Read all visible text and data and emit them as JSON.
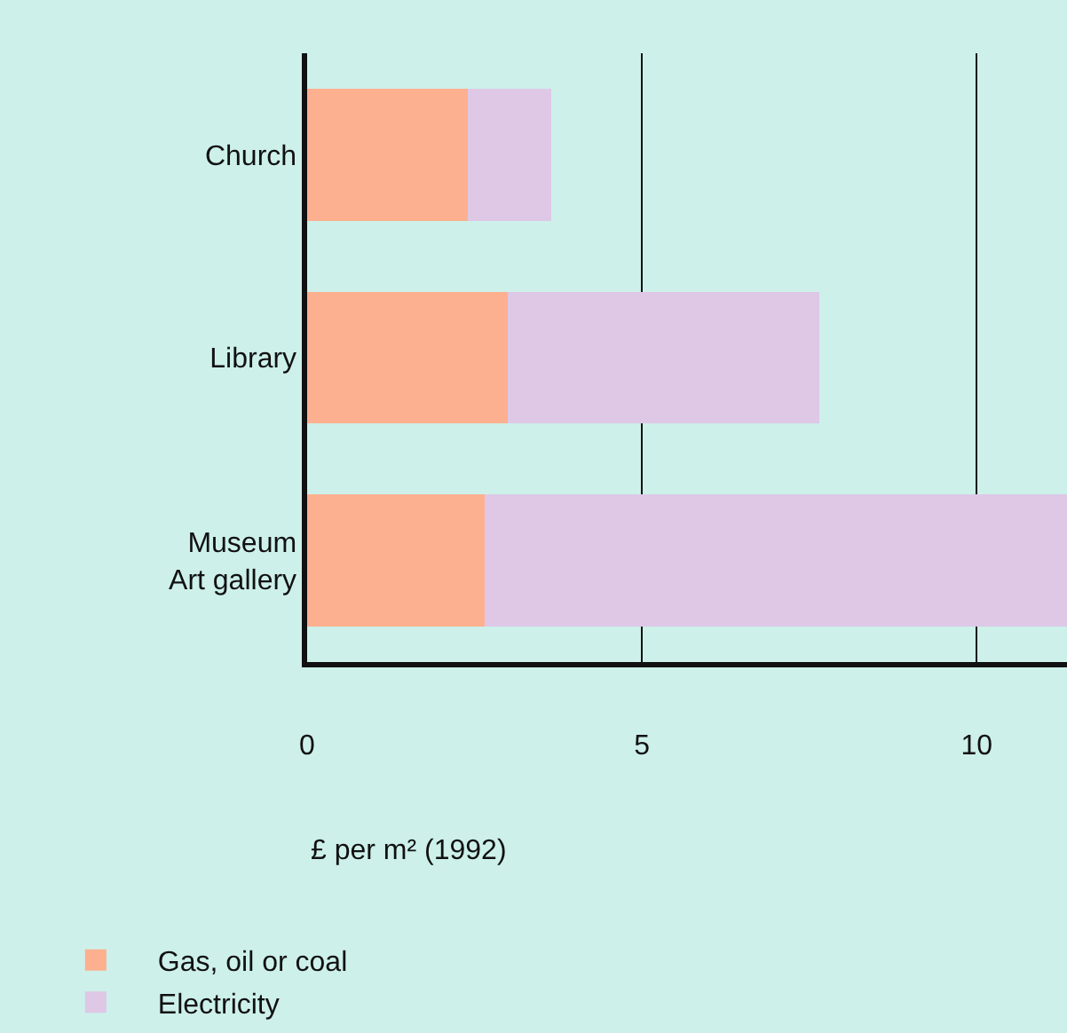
{
  "chart_data": {
    "type": "bar",
    "orientation": "horizontal",
    "stacked": true,
    "categories": [
      "Church",
      "Library",
      "Museum\nArt gallery"
    ],
    "series": [
      {
        "name": "Gas, oil or coal",
        "color": "#fdb08f",
        "values": [
          2.4,
          3.0,
          2.65
        ]
      },
      {
        "name": "Electricity",
        "color": "#dec8e6",
        "values": [
          1.25,
          4.65,
          8.7
        ]
      }
    ],
    "xlabel": "£ per m² (1992)",
    "xlim": [
      0,
      11.35
    ],
    "xticks": [
      0,
      5,
      10
    ],
    "grid": "x",
    "legend": "bottom"
  }
}
